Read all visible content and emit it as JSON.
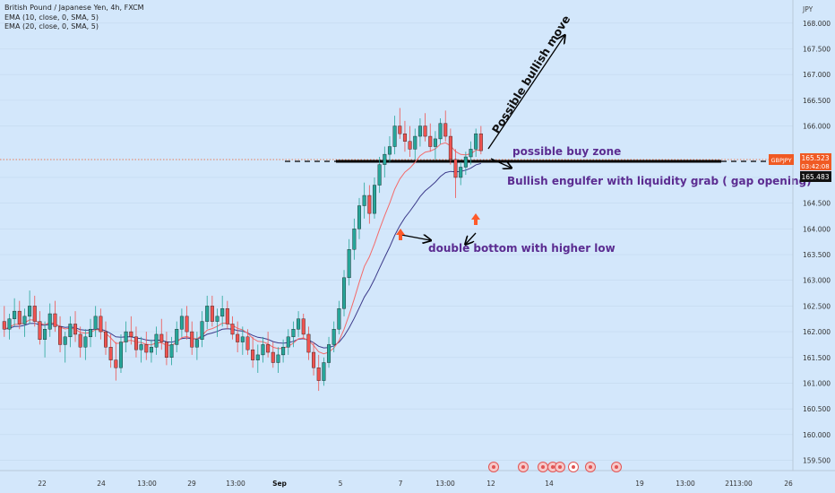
{
  "header": {
    "symbol_line": "British Pound / Japanese Yen, 4h, FXCM",
    "indicator_1": "EMA (10, close, 0, SMA, 5)",
    "indicator_2": "EMA (20, close, 0, SMA, 5)"
  },
  "price_axis": {
    "currency": "JPY",
    "ticks": [
      "168.000",
      "167.500",
      "167.000",
      "166.500",
      "166.000",
      "165.000",
      "164.500",
      "164.000",
      "163.500",
      "163.000",
      "162.500",
      "162.000",
      "161.500",
      "161.000",
      "160.500",
      "160.000",
      "159.500"
    ]
  },
  "time_axis": {
    "labels": [
      "22",
      "24",
      "13:00",
      "29",
      "13:00",
      "Sep",
      "5",
      "7",
      "13:00",
      "12",
      "14",
      "19",
      "13:00",
      "21",
      "13:00",
      "26"
    ]
  },
  "price_tags": {
    "symbol": "GBPJPY",
    "last_price": "165.523",
    "countdown": "03:42:08",
    "level_price": "165.483"
  },
  "annotations": {
    "bullish_move": "Possible bullish move",
    "buy_zone": "possible buy zone",
    "engulfer": "Bullish engulfer with liquidity grab ( gap opening)",
    "double_bottom": "double bottom with higher low"
  },
  "colors": {
    "background": "#d3e7fb",
    "bull_candle": "#26a69a",
    "bear_candle": "#ef5350",
    "ema_fast": "#f36b6b",
    "ema_slow": "#3c3a8a",
    "last_price_tag": "#f05a23",
    "annotation_text": "#5b2c91",
    "marker_arrow": "#ff5a2a"
  },
  "chart_data": {
    "type": "candlestick",
    "timeframe": "4h",
    "ylim": [
      159.3,
      168.45
    ],
    "horizontal_level": 165.483,
    "last_price": 165.523,
    "ohlc": [
      [
        162.2,
        162.5,
        161.9,
        162.05
      ],
      [
        162.05,
        162.35,
        161.85,
        162.25
      ],
      [
        162.25,
        162.65,
        162.1,
        162.4
      ],
      [
        162.4,
        162.6,
        162.05,
        162.15
      ],
      [
        162.15,
        162.45,
        161.9,
        162.3
      ],
      [
        162.3,
        162.8,
        162.15,
        162.5
      ],
      [
        162.5,
        162.7,
        162.1,
        162.2
      ],
      [
        162.2,
        162.4,
        161.75,
        161.85
      ],
      [
        161.85,
        162.2,
        161.5,
        162.05
      ],
      [
        162.05,
        162.55,
        161.9,
        162.35
      ],
      [
        162.35,
        162.6,
        162.0,
        162.1
      ],
      [
        162.1,
        162.3,
        161.6,
        161.75
      ],
      [
        161.75,
        162.0,
        161.4,
        161.9
      ],
      [
        161.9,
        162.3,
        161.7,
        162.15
      ],
      [
        162.15,
        162.4,
        161.8,
        161.95
      ],
      [
        161.95,
        162.1,
        161.5,
        161.7
      ],
      [
        161.7,
        162.05,
        161.45,
        161.9
      ],
      [
        161.9,
        162.25,
        161.7,
        162.05
      ],
      [
        162.05,
        162.5,
        161.9,
        162.3
      ],
      [
        162.3,
        162.45,
        161.85,
        162.0
      ],
      [
        162.0,
        162.2,
        161.55,
        161.7
      ],
      [
        161.7,
        161.95,
        161.3,
        161.45
      ],
      [
        161.45,
        161.8,
        161.05,
        161.3
      ],
      [
        161.3,
        161.95,
        161.2,
        161.8
      ],
      [
        161.8,
        162.2,
        161.6,
        162.0
      ],
      [
        162.0,
        162.3,
        161.75,
        161.9
      ],
      [
        161.9,
        162.1,
        161.5,
        161.65
      ],
      [
        161.65,
        161.9,
        161.4,
        161.75
      ],
      [
        161.75,
        162.0,
        161.45,
        161.6
      ],
      [
        161.6,
        161.85,
        161.4,
        161.7
      ],
      [
        161.7,
        162.1,
        161.55,
        161.95
      ],
      [
        161.95,
        162.25,
        161.65,
        161.8
      ],
      [
        161.8,
        162.0,
        161.35,
        161.5
      ],
      [
        161.5,
        161.9,
        161.35,
        161.75
      ],
      [
        161.75,
        162.2,
        161.6,
        162.05
      ],
      [
        162.05,
        162.45,
        161.9,
        162.3
      ],
      [
        162.3,
        162.5,
        161.85,
        162.0
      ],
      [
        162.0,
        162.2,
        161.55,
        161.7
      ],
      [
        161.7,
        162.0,
        161.45,
        161.85
      ],
      [
        161.85,
        162.4,
        161.7,
        162.2
      ],
      [
        162.2,
        162.7,
        162.05,
        162.5
      ],
      [
        162.5,
        162.7,
        162.1,
        162.2
      ],
      [
        162.2,
        162.45,
        161.9,
        162.3
      ],
      [
        162.3,
        162.7,
        162.1,
        162.45
      ],
      [
        162.45,
        162.6,
        162.05,
        162.15
      ],
      [
        162.15,
        162.3,
        161.85,
        161.95
      ],
      [
        161.95,
        162.2,
        161.6,
        161.8
      ],
      [
        161.8,
        162.1,
        161.55,
        161.9
      ],
      [
        161.9,
        162.05,
        161.55,
        161.65
      ],
      [
        161.65,
        161.9,
        161.3,
        161.45
      ],
      [
        161.45,
        161.75,
        161.2,
        161.55
      ],
      [
        161.55,
        161.9,
        161.4,
        161.75
      ],
      [
        161.75,
        162.0,
        161.5,
        161.6
      ],
      [
        161.6,
        161.8,
        161.3,
        161.4
      ],
      [
        161.4,
        161.7,
        161.2,
        161.55
      ],
      [
        161.55,
        161.85,
        161.4,
        161.7
      ],
      [
        161.7,
        162.05,
        161.55,
        161.9
      ],
      [
        161.9,
        162.2,
        161.7,
        162.05
      ],
      [
        162.05,
        162.4,
        161.9,
        162.25
      ],
      [
        162.25,
        162.35,
        161.85,
        161.95
      ],
      [
        161.95,
        162.1,
        161.45,
        161.6
      ],
      [
        161.6,
        161.8,
        161.15,
        161.3
      ],
      [
        161.3,
        161.55,
        160.85,
        161.05
      ],
      [
        161.05,
        161.5,
        160.95,
        161.4
      ],
      [
        161.4,
        161.9,
        161.3,
        161.75
      ],
      [
        161.75,
        162.2,
        161.6,
        162.05
      ],
      [
        162.05,
        162.6,
        161.95,
        162.45
      ],
      [
        162.45,
        163.2,
        162.3,
        163.05
      ],
      [
        163.05,
        163.8,
        162.9,
        163.6
      ],
      [
        163.6,
        164.2,
        163.4,
        164.0
      ],
      [
        164.0,
        164.6,
        163.8,
        164.45
      ],
      [
        164.45,
        164.9,
        164.2,
        164.65
      ],
      [
        164.65,
        164.85,
        164.1,
        164.3
      ],
      [
        164.3,
        165.0,
        164.2,
        164.85
      ],
      [
        164.85,
        165.4,
        164.7,
        165.25
      ],
      [
        165.25,
        165.6,
        165.0,
        165.45
      ],
      [
        165.45,
        165.8,
        165.3,
        165.6
      ],
      [
        165.6,
        166.2,
        165.45,
        166.0
      ],
      [
        166.0,
        166.35,
        165.75,
        165.85
      ],
      [
        165.85,
        166.1,
        165.5,
        165.7
      ],
      [
        165.7,
        166.0,
        165.4,
        165.55
      ],
      [
        165.55,
        165.95,
        165.35,
        165.8
      ],
      [
        165.8,
        166.15,
        165.6,
        166.0
      ],
      [
        166.0,
        166.25,
        165.7,
        165.8
      ],
      [
        165.8,
        166.05,
        165.5,
        165.6
      ],
      [
        165.6,
        165.9,
        165.35,
        165.75
      ],
      [
        165.75,
        166.15,
        165.65,
        166.05
      ],
      [
        166.05,
        166.3,
        165.7,
        165.8
      ],
      [
        165.8,
        165.95,
        165.25,
        165.35
      ],
      [
        165.35,
        165.55,
        164.6,
        165.0
      ],
      [
        165.0,
        165.3,
        164.85,
        165.2
      ],
      [
        165.2,
        165.5,
        165.05,
        165.4
      ],
      [
        165.4,
        165.7,
        165.25,
        165.55
      ],
      [
        165.55,
        165.95,
        165.4,
        165.85
      ],
      [
        165.85,
        166.0,
        165.45,
        165.52
      ]
    ]
  }
}
